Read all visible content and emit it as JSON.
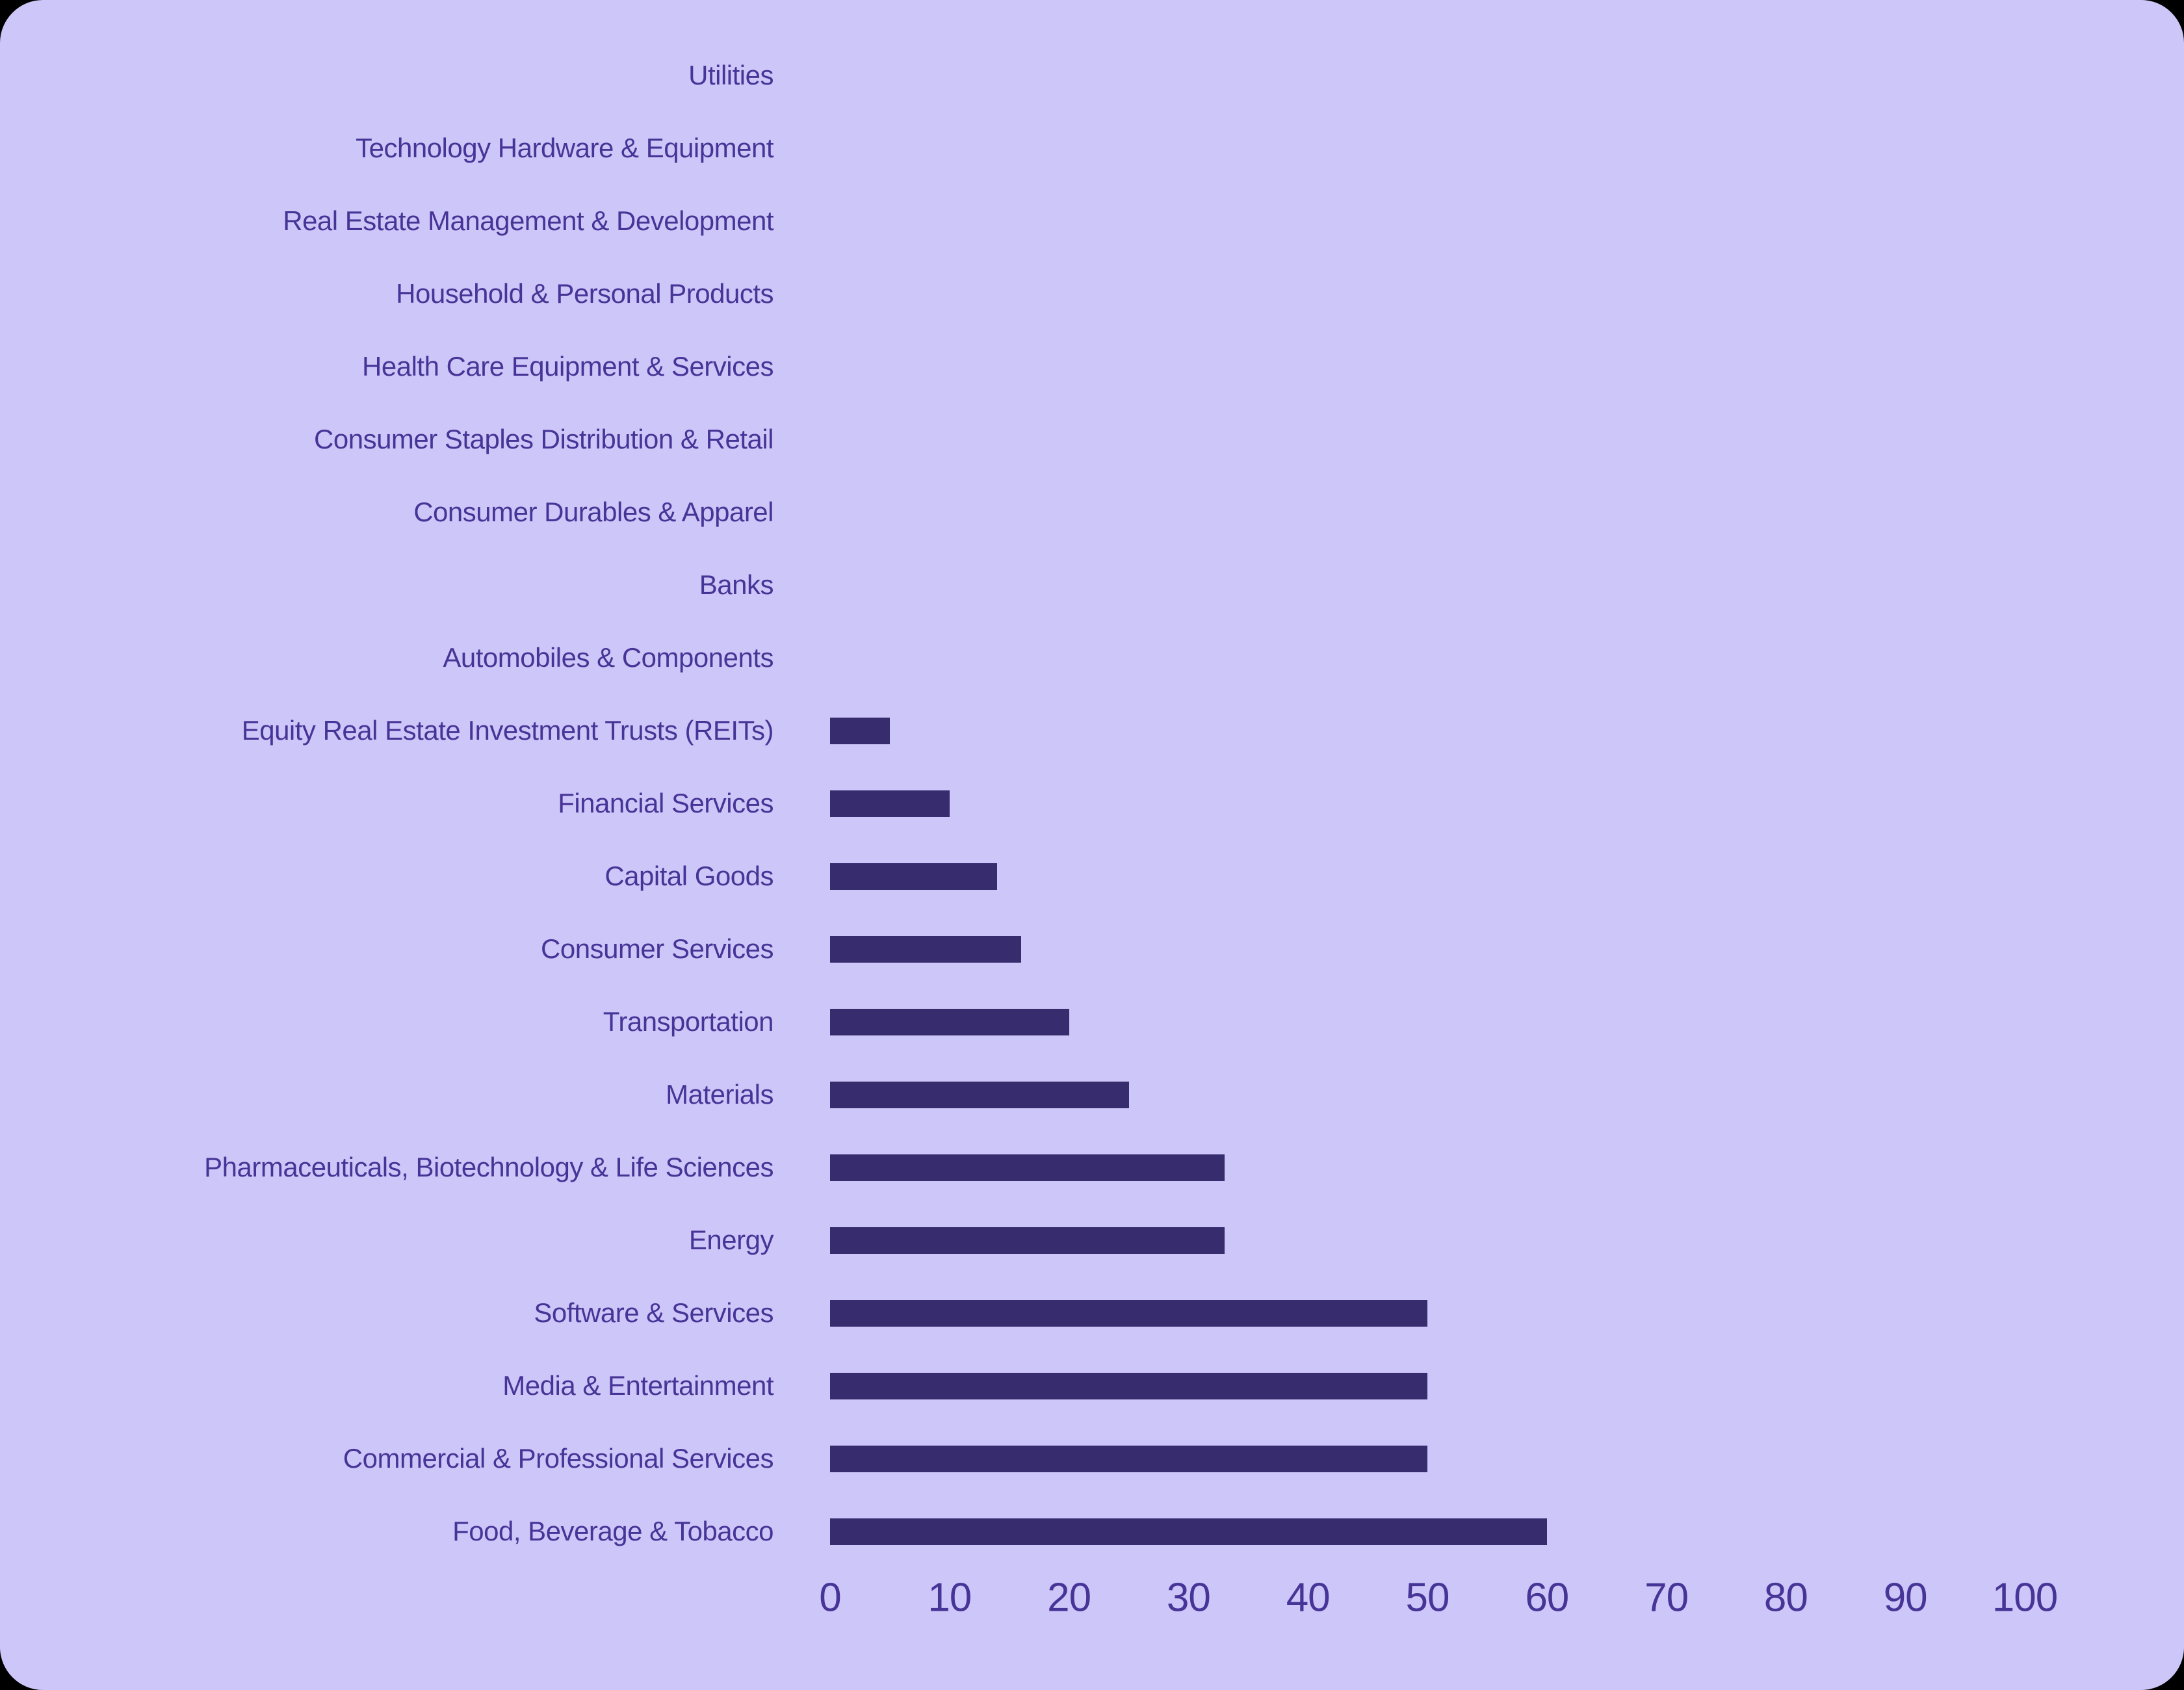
{
  "chart_data": {
    "type": "bar",
    "orientation": "horizontal",
    "title": "",
    "xlabel": "",
    "ylabel": "",
    "grid": false,
    "legend": false,
    "xlim": [
      0,
      100
    ],
    "x_ticks": [
      0,
      10,
      20,
      30,
      40,
      50,
      60,
      70,
      80,
      90,
      100
    ],
    "categories": [
      "Utilities",
      "Technology Hardware & Equipment",
      "Real Estate Management & Development",
      "Household & Personal Products",
      "Health Care Equipment & Services",
      "Consumer Staples Distribution & Retail",
      "Consumer Durables & Apparel",
      "Banks",
      "Automobiles & Components",
      "Equity Real Estate Investment Trusts (REITs)",
      "Financial Services",
      "Capital Goods",
      "Consumer Services",
      "Transportation",
      "Materials",
      "Pharmaceuticals, Biotechnology & Life Sciences",
      "Energy",
      "Software & Services",
      "Media & Entertainment",
      "Commercial & Professional Services",
      "Food, Beverage & Tobacco"
    ],
    "values": [
      0,
      0,
      0,
      0,
      0,
      0,
      0,
      0,
      0,
      5,
      10,
      14,
      16,
      20,
      25,
      33,
      33,
      50,
      50,
      50,
      60
    ],
    "colors": {
      "background": "#cdc6f8",
      "bar": "#362c6e",
      "text": "#473497",
      "outer": "#000000"
    }
  }
}
